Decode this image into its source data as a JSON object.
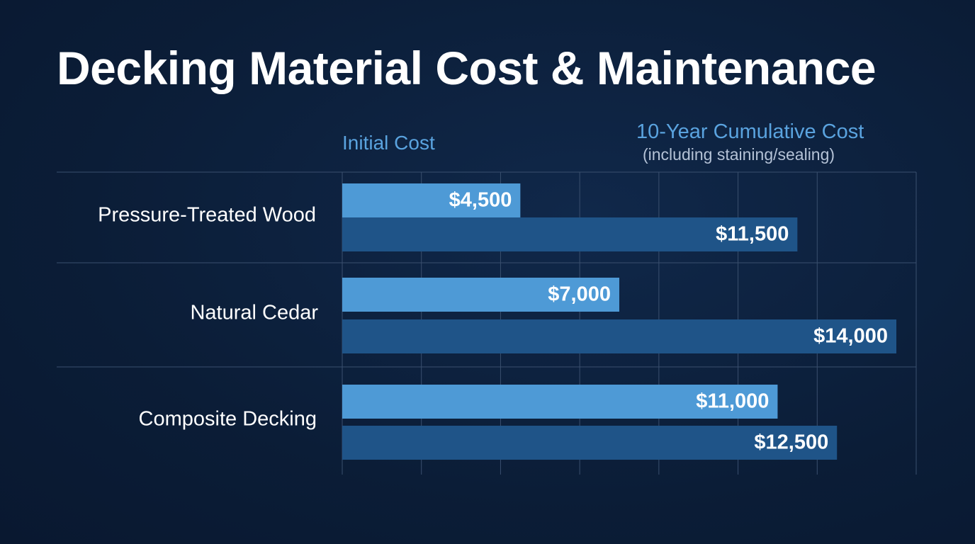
{
  "chart_data": {
    "type": "bar",
    "orientation": "horizontal",
    "title": "Decking Material Cost & Maintenance",
    "categories": [
      "Pressure-Treated Wood",
      "Natural Cedar",
      "Composite Decking"
    ],
    "series": [
      {
        "name": "Initial Cost",
        "color": "#4e9ad6",
        "values": [
          4500,
          7000,
          11000
        ],
        "labels": [
          "$4,500",
          "$7,000",
          "$11,000"
        ]
      },
      {
        "name": "10-Year Cumulative Cost",
        "note": "(including staining/sealing)",
        "color": "#1f5488",
        "values": [
          11500,
          14000,
          12500
        ],
        "labels": [
          "$11,500",
          "$14,000",
          "$12,500"
        ]
      }
    ],
    "xlim": [
      0,
      14250
    ],
    "grid": true,
    "legend_placement": "top"
  }
}
